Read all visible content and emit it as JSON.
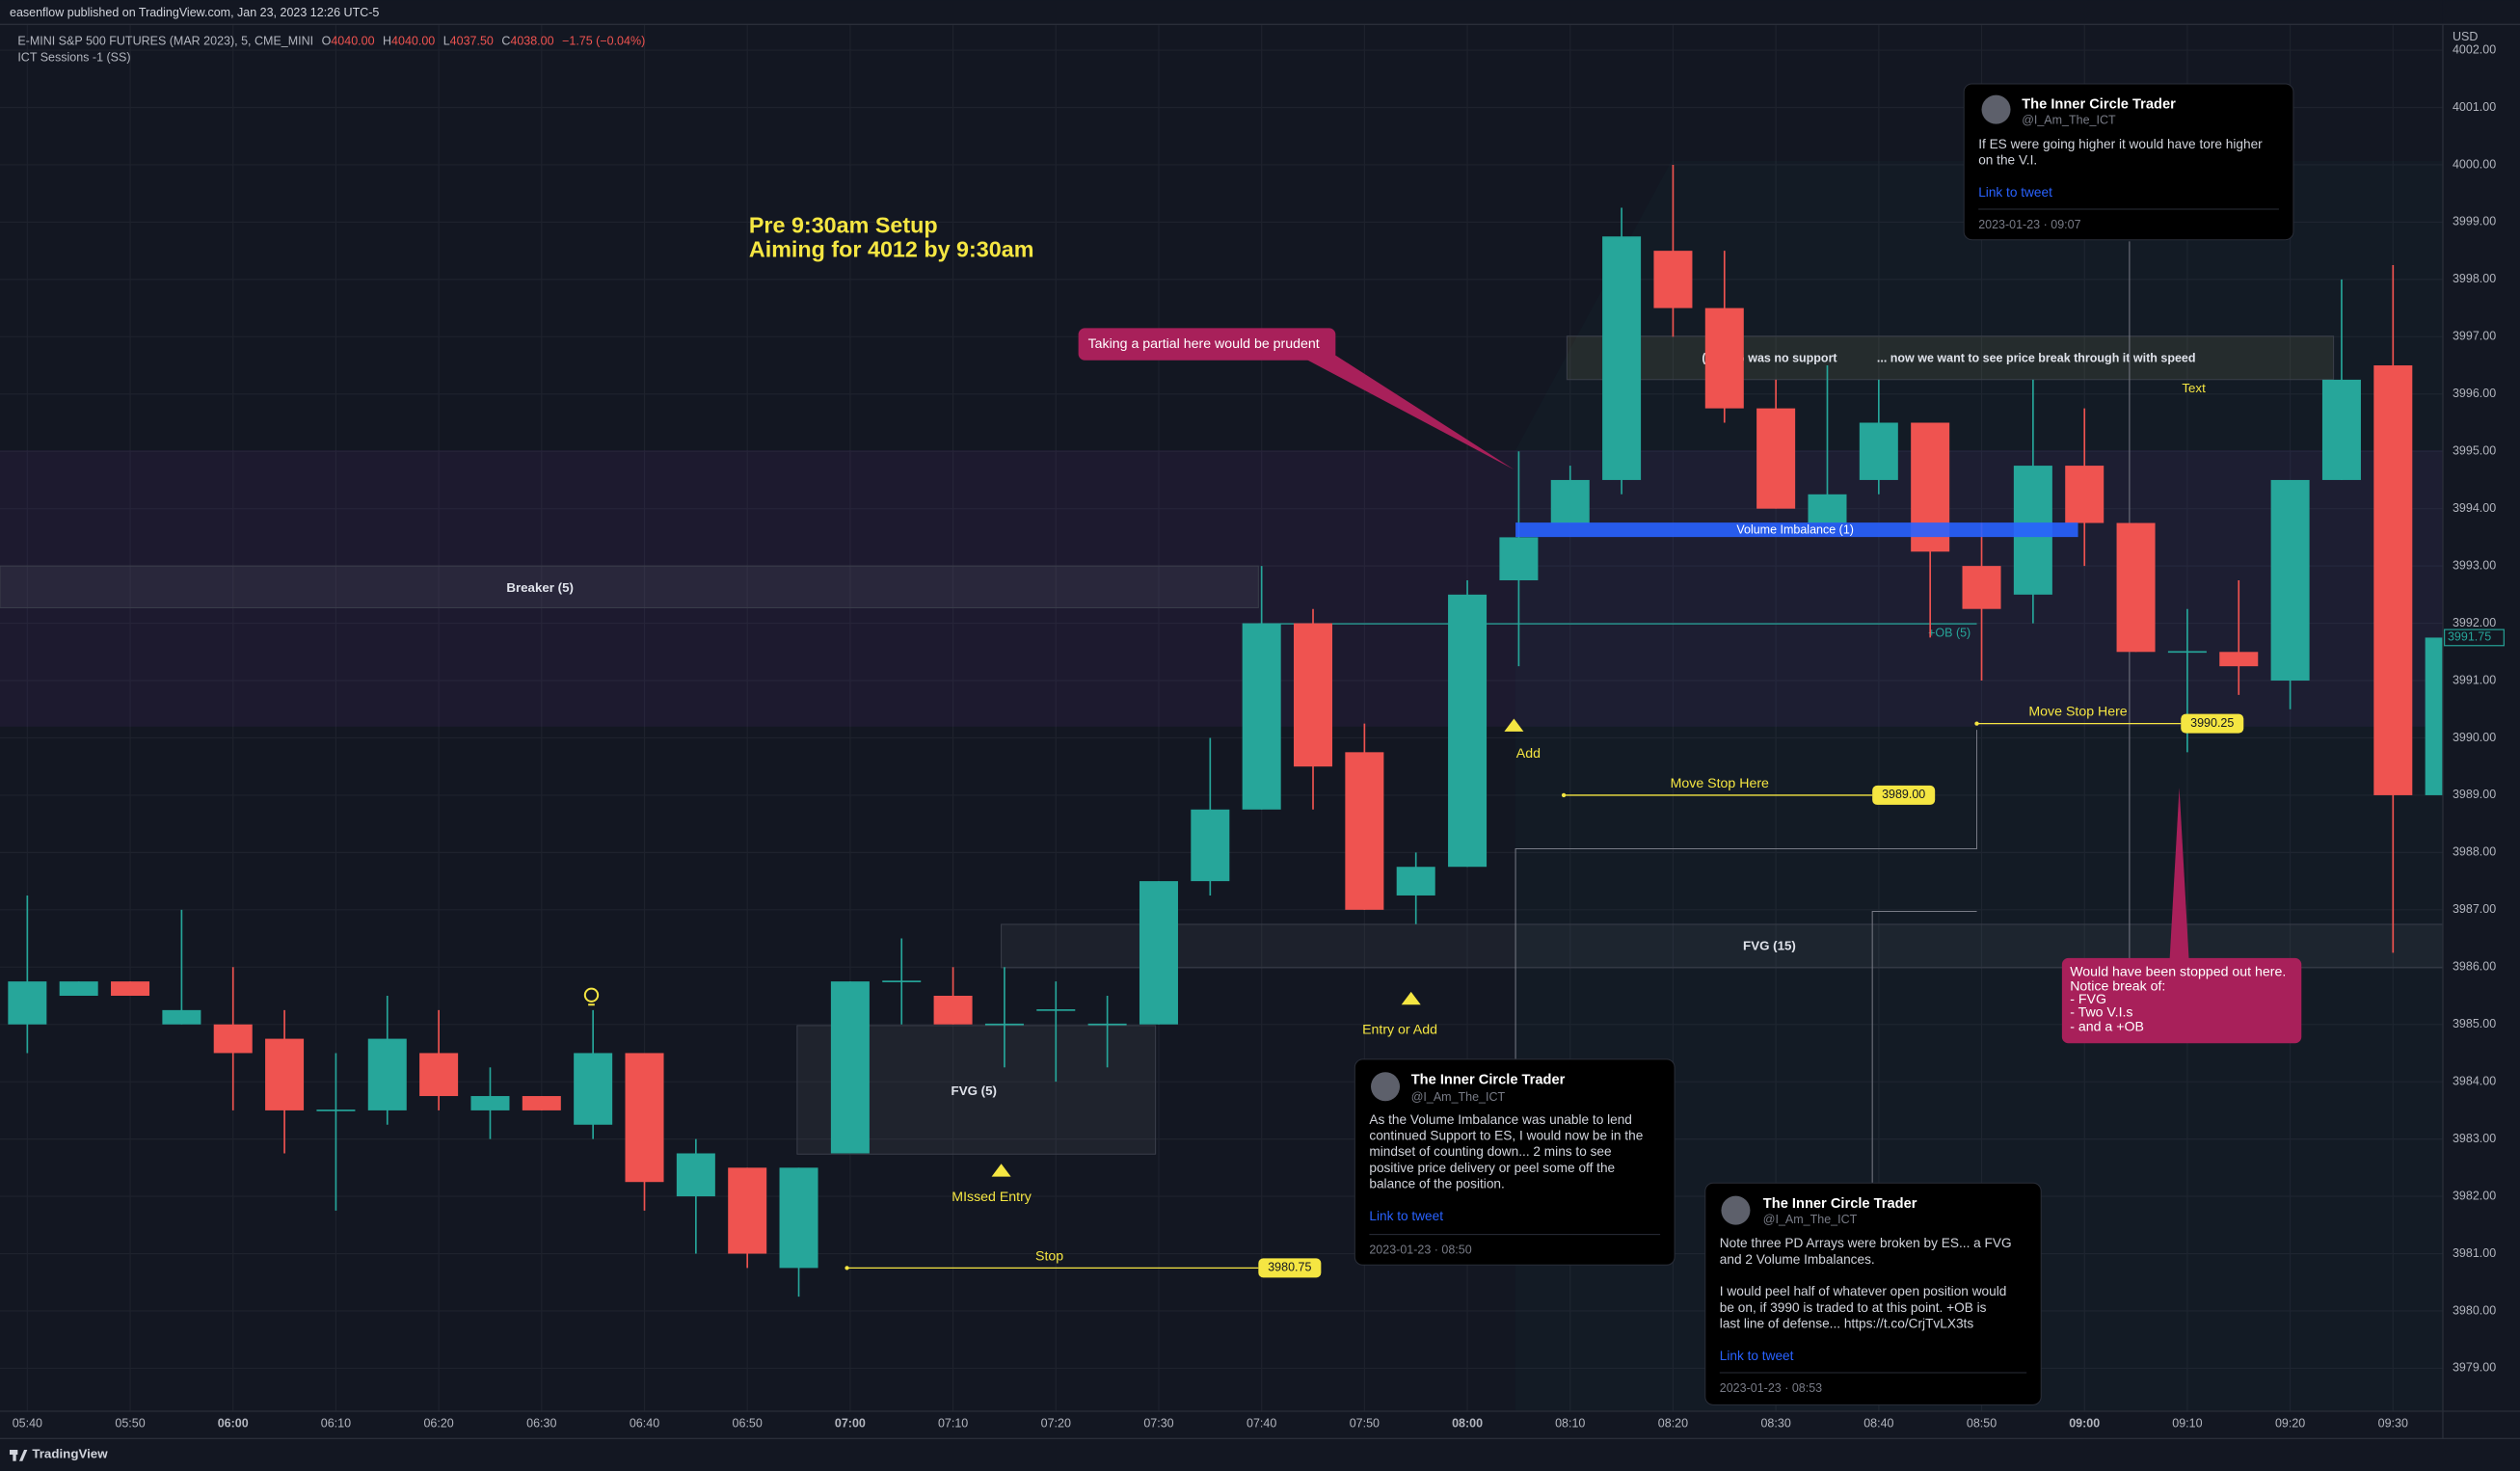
{
  "header": {
    "publisher": "easenflow published on TradingView.com, Jan 23, 2023 12:26 UTC-5",
    "symbol": "E-MINI S&P 500 FUTURES (MAR 2023), 5, CME_MINI",
    "ohlc": [
      {
        "key": "O",
        "value": "4040.00"
      },
      {
        "key": "H",
        "value": "4040.00"
      },
      {
        "key": "L",
        "value": "4037.50"
      },
      {
        "key": "C",
        "value": "4038.00"
      }
    ],
    "change": "−1.75 (−0.04%)",
    "indicator": "ICT Sessions -1 (SS)"
  },
  "footer": {
    "brand": "TradingView"
  },
  "chart_data": {
    "type": "candlestick",
    "currency": "USD",
    "categories": [
      "05:40",
      null,
      "05:50",
      null,
      "06:00",
      null,
      "06:10",
      null,
      "06:20",
      null,
      "06:30",
      null,
      "06:40",
      null,
      "06:50",
      null,
      "07:00",
      null,
      "07:10",
      null,
      "07:20",
      null,
      "07:30",
      null,
      "07:40",
      null,
      "07:50",
      null,
      "08:00",
      null,
      "08:10",
      null,
      "08:20",
      null,
      "08:30",
      null,
      "08:40",
      null,
      "08:50",
      null,
      "09:00",
      null,
      "09:10",
      null,
      "09:20",
      null,
      "09:30",
      null
    ],
    "up_color": "#26a69a",
    "down_color": "#ef5350",
    "open": [
      3985,
      3985.5,
      3985.75,
      3985,
      3985,
      3984.75,
      3983.5,
      3983.5,
      3984.5,
      3983.5,
      3983.75,
      3983.25,
      3984.5,
      3982,
      3982.5,
      3980.75,
      3982.75,
      3985.75,
      3985.5,
      3985,
      3985.25,
      3985,
      3985,
      3987.5,
      3988.75,
      3992,
      3989.75,
      3987.25,
      3987.75,
      3992.75,
      3993.75,
      3994.5,
      3998.5,
      3997.5,
      3995.75,
      3993.75,
      3994.5,
      3995.5,
      3993,
      3992.5,
      3994.75,
      3993.75,
      3991.5,
      3991.5,
      3991,
      3994.5,
      3996.5,
      3989
    ],
    "high": [
      3987.25,
      3985.75,
      3985.75,
      3987,
      3986,
      3985.25,
      3984.5,
      3985.5,
      3985.25,
      3984.25,
      3983.75,
      3985.25,
      3984.5,
      3983,
      3982.5,
      3982.5,
      3985.75,
      3986.5,
      3986,
      3986,
      3985.75,
      3985.5,
      3987.5,
      3990,
      3993,
      3992.25,
      3990.25,
      3988,
      3992.75,
      3995,
      3994.75,
      3999.25,
      4000,
      3998.5,
      3996.25,
      3996.5,
      3996.25,
      3995.5,
      3993.75,
      3996.25,
      3995.75,
      3993.75,
      3992.25,
      3992.75,
      3994.5,
      3998,
      3998.25,
      3996.25
    ],
    "low": [
      3984.5,
      3985.5,
      3985.5,
      3985,
      3983.5,
      3982.75,
      3981.75,
      3983.25,
      3983.5,
      3983,
      3983.5,
      3983,
      3981.75,
      3981,
      3980.75,
      3980.25,
      3982.75,
      3985,
      3985,
      3984.25,
      3984,
      3984.25,
      3985,
      3987.25,
      3988.75,
      3988.75,
      3987,
      3986.75,
      3987.75,
      3991.25,
      3993.75,
      3994.25,
      3997,
      3995.5,
      3994,
      3993.75,
      3994.25,
      3991.75,
      3991,
      3992,
      3993,
      3991.5,
      3989.75,
      3990.75,
      3990.5,
      3994.5,
      3986.25,
      3987.5
    ],
    "close": [
      3985.75,
      3985.75,
      3985.5,
      3985.25,
      3984.5,
      3983.5,
      3983.5,
      3984.75,
      3983.75,
      3983.75,
      3983.5,
      3984.5,
      3982.25,
      3982.75,
      3981,
      3982.5,
      3985.75,
      3985.75,
      3985,
      3985,
      3985.25,
      3985,
      3987.5,
      3988.75,
      3992,
      3989.5,
      3987,
      3987.75,
      3992.5,
      3993.5,
      3994.5,
      3998.75,
      3997.5,
      3995.75,
      3994,
      3994.25,
      3995.5,
      3993.25,
      3992.25,
      3994.75,
      3993.75,
      3991.5,
      3991.5,
      3991.25,
      3994.5,
      3996.25,
      3989,
      3991.75
    ],
    "ylim": [
      3978.25,
      4002.45
    ],
    "yticks": [
      {
        "value": 3979,
        "label": "3979.00"
      },
      {
        "value": 3980,
        "label": "3980.00"
      },
      {
        "value": 3981,
        "label": "3981.00"
      },
      {
        "value": 3982,
        "label": "3982.00"
      },
      {
        "value": 3983,
        "label": "3983.00"
      },
      {
        "value": 3984,
        "label": "3984.00"
      },
      {
        "value": 3985,
        "label": "3985.00"
      },
      {
        "value": 3986,
        "label": "3986.00"
      },
      {
        "value": 3987,
        "label": "3987.00"
      },
      {
        "value": 3988,
        "label": "3988.00"
      },
      {
        "value": 3989,
        "label": "3989.00"
      },
      {
        "value": 3990,
        "label": "3990.00"
      },
      {
        "value": 3991,
        "label": "3991.00"
      },
      {
        "value": 3992,
        "label": "3992.00"
      },
      {
        "value": 3993,
        "label": "3993.00"
      },
      {
        "value": 3994,
        "label": "3994.00"
      },
      {
        "value": 3995,
        "label": "3995.00"
      },
      {
        "value": 3996,
        "label": "3996.00"
      },
      {
        "value": 3997,
        "label": "3997.00"
      },
      {
        "value": 3998,
        "label": "3998.00"
      },
      {
        "value": 3999,
        "label": "3999.00"
      },
      {
        "value": 4000,
        "label": "4000.00"
      },
      {
        "value": 4001,
        "label": "4001.00"
      },
      {
        "value": 4002,
        "label": "4002.00"
      }
    ],
    "grid": true,
    "last_price": {
      "value": 3991.75,
      "label": "3991.75"
    },
    "levels": [
      {
        "label": "Stop",
        "price": {
          "value": 3980.75,
          "label": "3980.75"
        }
      },
      {
        "label": "Move Stop Here",
        "price": {
          "value": 3989,
          "label": "3989.00"
        }
      },
      {
        "label": "Move Stop Here",
        "price": {
          "value": 3990.25,
          "label": "3990.25"
        }
      }
    ],
    "title_lines": [
      "Pre 9:30am Setup",
      "Aiming for 4012 by 9:30am"
    ],
    "zones": {
      "breaker": "Breaker (5)",
      "fvg5": "FVG (5)",
      "fvg15": "FVG (15)",
      "fvg_top_left": "(5) FVG was no support",
      "fvg_top_right": "... now we want to see price break through it with speed",
      "text": "Text",
      "volume_imbalance": "Volume Imbalance (1)",
      "ob": "+OB (5)"
    },
    "markers": {
      "add": "Add",
      "entry_or_add": "Entry or Add",
      "missed_entry": "MIssed Entry"
    },
    "callouts": {
      "partial": "Taking a partial here would be prudent",
      "stopped": [
        "Would have been stopped out here.",
        "Notice break of:",
        "- FVG",
        "- Two V.I.s",
        "- and a +OB"
      ]
    }
  },
  "tweets": [
    {
      "name": "The Inner Circle Trader",
      "handle": "@I_Am_The_ICT",
      "lines": [
        "If ES were going higher it would have tore higher",
        "on the V.I."
      ],
      "link": "Link to tweet",
      "date": "2023-01-23 · 09:07"
    },
    {
      "name": "The Inner Circle Trader",
      "handle": "@I_Am_The_ICT",
      "lines": [
        "As the Volume Imbalance was unable to lend",
        "continued Support to ES, I would now be in the",
        "mindset of counting down... 2 mins to see",
        "positive price delivery or peel some off the",
        "balance of the position."
      ],
      "link": "Link to tweet",
      "date": "2023-01-23 · 08:50"
    },
    {
      "name": "The Inner Circle Trader",
      "handle": "@I_Am_The_ICT",
      "lines": [
        "Note three PD Arrays were broken by ES... a FVG",
        "and 2 Volume Imbalances.",
        "I would peel half of whatever open position would",
        "be on, if 3990 is traded to at this point.  +OB is",
        "last line of defense... https://t.co/CrjTvLX3ts"
      ],
      "link": "Link to tweet",
      "date": "2023-01-23 · 08:53"
    }
  ]
}
